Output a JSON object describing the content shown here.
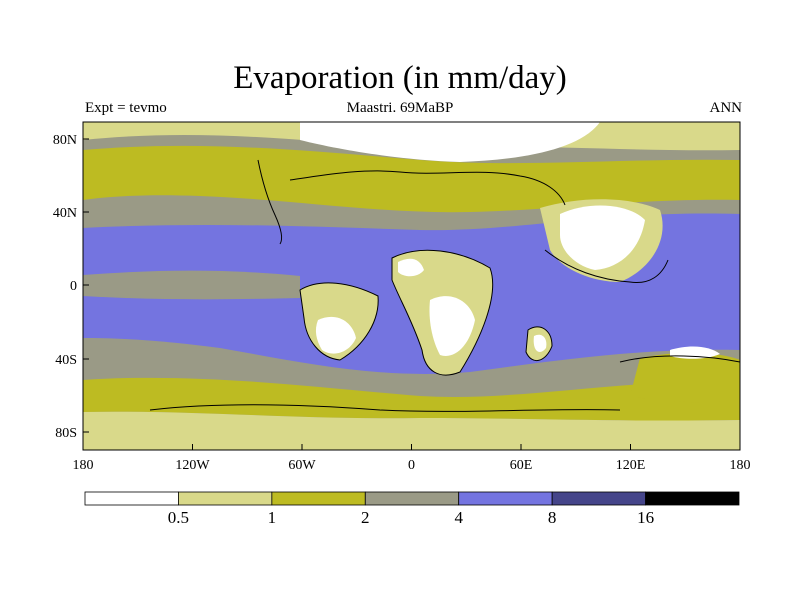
{
  "title": "Evaporation (in mm/day)",
  "left_label": "Expt = tevmo",
  "center_label": "Maastri.  69MaBP",
  "right_label": "ANN",
  "lat_ticks": [
    "80N",
    "40N",
    "0",
    "40S",
    "80S"
  ],
  "lon_ticks": [
    "180",
    "120W",
    "60W",
    "0",
    "60E",
    "120E",
    "180"
  ],
  "colorbar": {
    "boundaries": [
      "0.5",
      "1",
      "2",
      "4",
      "8",
      "16"
    ],
    "colors": [
      "#ffffff",
      "#d9d98a",
      "#bdbb22",
      "#9a9a86",
      "#7474e0",
      "#45458a",
      "#000000"
    ]
  }
}
